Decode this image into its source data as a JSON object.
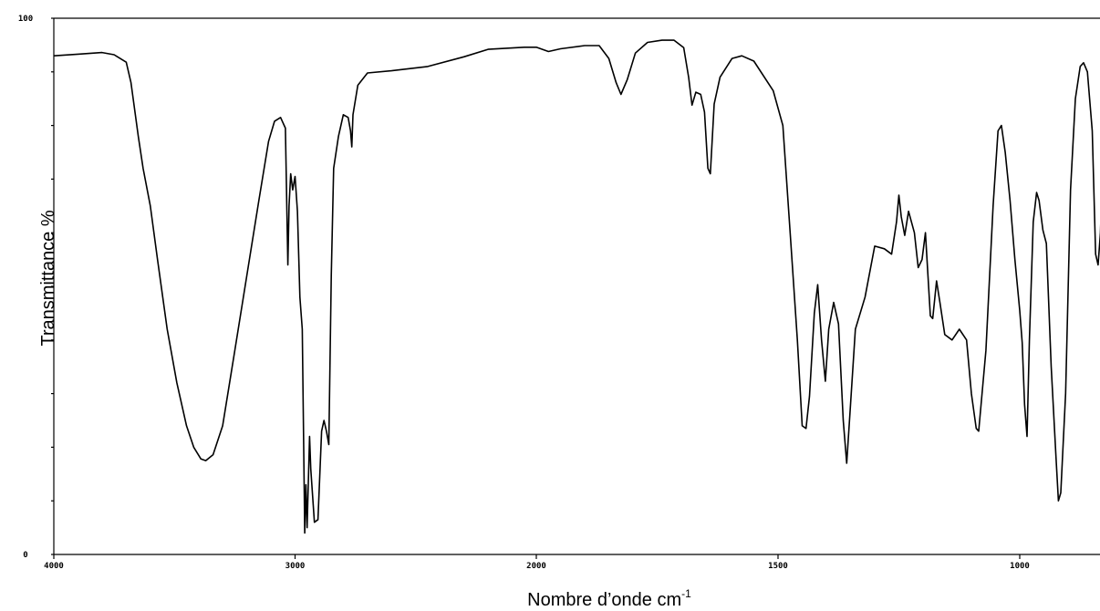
{
  "chart_data": {
    "type": "line",
    "title": "",
    "xlabel": "Nombre d’onde cm",
    "xlabel_sup": "-1",
    "ylabel": "Transmittance %",
    "xlim": [
      4000,
      650
    ],
    "ylim": [
      0,
      100
    ],
    "x_ticks": [
      {
        "value": 4000,
        "label": "4000"
      },
      {
        "value": 3000,
        "label": "3000"
      },
      {
        "value": 2000,
        "label": "2000"
      },
      {
        "value": 1500,
        "label": "1500"
      },
      {
        "value": 1000,
        "label": "1000"
      }
    ],
    "y_ticks": [
      {
        "value": 100,
        "label": "100"
      },
      {
        "value": 0,
        "label": "0"
      }
    ],
    "grid": false,
    "series": [
      {
        "points": [
          [
            4000,
            93.0
          ],
          [
            3900,
            93.3
          ],
          [
            3800,
            93.6
          ],
          [
            3750,
            93.2
          ],
          [
            3700,
            91.8
          ],
          [
            3680,
            88.0
          ],
          [
            3650,
            78.0
          ],
          [
            3630,
            72.0
          ],
          [
            3600,
            65.0
          ],
          [
            3570,
            55.0
          ],
          [
            3530,
            42.0
          ],
          [
            3490,
            32.0
          ],
          [
            3450,
            24.0
          ],
          [
            3420,
            20.0
          ],
          [
            3390,
            17.8
          ],
          [
            3370,
            17.5
          ],
          [
            3340,
            18.6
          ],
          [
            3300,
            24.0
          ],
          [
            3250,
            38.0
          ],
          [
            3200,
            52.0
          ],
          [
            3150,
            66.0
          ],
          [
            3110,
            77.0
          ],
          [
            3085,
            80.8
          ],
          [
            3060,
            81.5
          ],
          [
            3040,
            79.5
          ],
          [
            3030,
            54.0
          ],
          [
            3025,
            65.0
          ],
          [
            3018,
            71.0
          ],
          [
            3010,
            68.0
          ],
          [
            3000,
            70.5
          ],
          [
            2990,
            64.0
          ],
          [
            2980,
            48.0
          ],
          [
            2970,
            42.0
          ],
          [
            2960,
            4.0
          ],
          [
            2955,
            13.0
          ],
          [
            2950,
            5.0
          ],
          [
            2940,
            22.0
          ],
          [
            2935,
            16.0
          ],
          [
            2920,
            6.0
          ],
          [
            2905,
            6.5
          ],
          [
            2890,
            23.0
          ],
          [
            2880,
            25.0
          ],
          [
            2870,
            23.0
          ],
          [
            2860,
            20.5
          ],
          [
            2850,
            52.0
          ],
          [
            2840,
            72.0
          ],
          [
            2820,
            78.0
          ],
          [
            2800,
            82.0
          ],
          [
            2780,
            81.5
          ],
          [
            2770,
            79.0
          ],
          [
            2765,
            76.0
          ],
          [
            2760,
            82.0
          ],
          [
            2740,
            87.5
          ],
          [
            2700,
            89.8
          ],
          [
            2600,
            90.2
          ],
          [
            2450,
            91.0
          ],
          [
            2300,
            92.8
          ],
          [
            2200,
            94.2
          ],
          [
            2050,
            94.6
          ],
          [
            2000,
            94.6
          ],
          [
            1975,
            93.8
          ],
          [
            1950,
            94.3
          ],
          [
            1900,
            94.9
          ],
          [
            1870,
            94.9
          ],
          [
            1850,
            92.5
          ],
          [
            1835,
            88.0
          ],
          [
            1825,
            85.8
          ],
          [
            1812,
            88.5
          ],
          [
            1795,
            93.5
          ],
          [
            1770,
            95.5
          ],
          [
            1740,
            95.9
          ],
          [
            1715,
            95.9
          ],
          [
            1695,
            94.5
          ],
          [
            1685,
            89.0
          ],
          [
            1678,
            83.8
          ],
          [
            1670,
            86.2
          ],
          [
            1660,
            85.8
          ],
          [
            1652,
            82.5
          ],
          [
            1645,
            72.0
          ],
          [
            1640,
            71.0
          ],
          [
            1632,
            84.0
          ],
          [
            1620,
            89.0
          ],
          [
            1595,
            92.5
          ],
          [
            1575,
            93.0
          ],
          [
            1550,
            92.0
          ],
          [
            1510,
            86.5
          ],
          [
            1490,
            80.0
          ],
          [
            1475,
            60.0
          ],
          [
            1460,
            40.0
          ],
          [
            1450,
            24.0
          ],
          [
            1442,
            23.5
          ],
          [
            1435,
            29.5
          ],
          [
            1425,
            45.0
          ],
          [
            1418,
            50.3
          ],
          [
            1410,
            40.0
          ],
          [
            1402,
            32.3
          ],
          [
            1395,
            42.0
          ],
          [
            1385,
            47.0
          ],
          [
            1375,
            43.0
          ],
          [
            1365,
            25.0
          ],
          [
            1358,
            17.0
          ],
          [
            1350,
            28.0
          ],
          [
            1340,
            42.0
          ],
          [
            1320,
            48.0
          ],
          [
            1300,
            57.5
          ],
          [
            1280,
            57.0
          ],
          [
            1265,
            56.0
          ],
          [
            1255,
            62.0
          ],
          [
            1250,
            67.0
          ],
          [
            1245,
            63.0
          ],
          [
            1238,
            59.5
          ],
          [
            1230,
            64.0
          ],
          [
            1218,
            60.0
          ],
          [
            1210,
            53.5
          ],
          [
            1202,
            55.0
          ],
          [
            1195,
            60.0
          ],
          [
            1185,
            44.5
          ],
          [
            1180,
            44.0
          ],
          [
            1172,
            51.0
          ],
          [
            1165,
            47.0
          ],
          [
            1155,
            41.0
          ],
          [
            1140,
            40.0
          ],
          [
            1125,
            42.0
          ],
          [
            1110,
            40.0
          ],
          [
            1100,
            30.0
          ],
          [
            1090,
            23.5
          ],
          [
            1085,
            23.0
          ],
          [
            1070,
            38.0
          ],
          [
            1055,
            65.0
          ],
          [
            1045,
            79.0
          ],
          [
            1038,
            80.0
          ],
          [
            1030,
            75.0
          ],
          [
            1020,
            66.0
          ],
          [
            1010,
            55.0
          ],
          [
            1000,
            45.5
          ],
          [
            995,
            39.5
          ],
          [
            990,
            28.0
          ],
          [
            985,
            22.0
          ],
          [
            980,
            40.0
          ],
          [
            972,
            62.0
          ],
          [
            965,
            67.5
          ],
          [
            960,
            66.0
          ],
          [
            952,
            60.5
          ],
          [
            945,
            58.0
          ],
          [
            935,
            35.0
          ],
          [
            925,
            18.0
          ],
          [
            920,
            10.0
          ],
          [
            915,
            11.5
          ],
          [
            905,
            30.0
          ],
          [
            895,
            68.0
          ],
          [
            885,
            85.0
          ],
          [
            875,
            91.0
          ],
          [
            868,
            91.7
          ],
          [
            860,
            90.0
          ],
          [
            850,
            79.0
          ],
          [
            843,
            56.0
          ],
          [
            838,
            54.0
          ],
          [
            833,
            60.0
          ],
          [
            828,
            75.0
          ],
          [
            818,
            78.0
          ]
        ]
      }
    ]
  }
}
